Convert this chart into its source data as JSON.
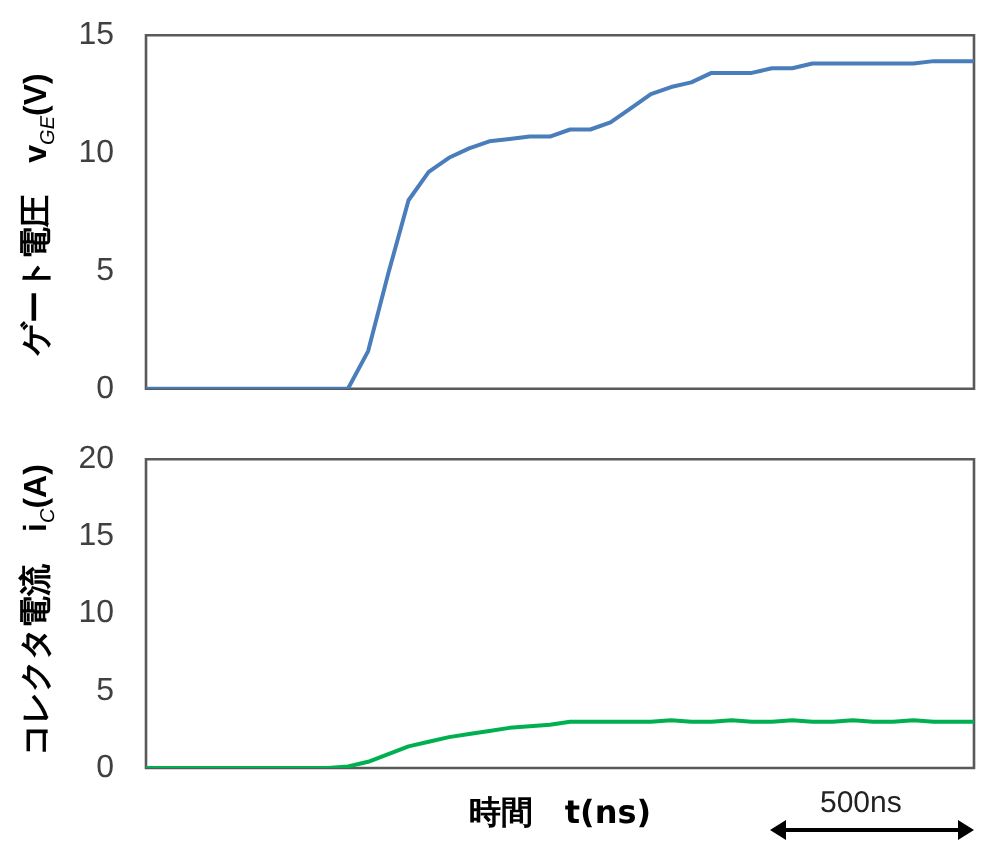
{
  "chart_data": [
    {
      "type": "line",
      "ylabel": "ゲート電圧　v$_{GE}$(V)",
      "categories": [
        null,
        null,
        null,
        null,
        null,
        null,
        null,
        null,
        null,
        null,
        null,
        null,
        null,
        null,
        null,
        null,
        null,
        null,
        null,
        null,
        null,
        null,
        null,
        null,
        null,
        null,
        null,
        null,
        null,
        null,
        null,
        null,
        null,
        null,
        null,
        null,
        null,
        null,
        null,
        null,
        null,
        null
      ],
      "values": [
        0,
        0,
        0,
        0,
        0,
        0,
        0,
        0,
        0,
        0,
        0,
        1.6,
        4.9,
        8.0,
        9.2,
        9.8,
        10.2,
        10.5,
        10.6,
        10.7,
        10.7,
        11.0,
        11.0,
        11.3,
        11.9,
        12.5,
        12.8,
        13.0,
        13.4,
        13.4,
        13.4,
        13.6,
        13.6,
        13.8,
        13.8,
        13.8,
        13.8,
        13.8,
        13.8,
        13.9,
        13.9,
        13.9
      ],
      "color": "#4a7ebb",
      "ylim": [
        0,
        15
      ],
      "yticks": [
        0,
        5,
        10,
        15
      ],
      "tick_labels": "y",
      "marker": "none"
    },
    {
      "type": "line",
      "ylabel": "コレクタ電流　i$_{C}$(A)",
      "xlabel": "時間　t(ns)",
      "categories": [
        null,
        null,
        null,
        null,
        null,
        null,
        null,
        null,
        null,
        null,
        null,
        null,
        null,
        null,
        null,
        null,
        null,
        null,
        null,
        null,
        null,
        null,
        null,
        null,
        null,
        null,
        null,
        null,
        null,
        null,
        null,
        null,
        null,
        null,
        null,
        null,
        null,
        null,
        null,
        null,
        null,
        null
      ],
      "values": [
        0,
        0,
        0,
        0,
        0,
        0,
        0,
        0,
        0,
        0,
        0.1,
        0.4,
        0.9,
        1.4,
        1.7,
        2.0,
        2.2,
        2.4,
        2.6,
        2.7,
        2.8,
        3.0,
        3.0,
        3.0,
        3.0,
        3.0,
        3.1,
        3.0,
        3.0,
        3.1,
        3.0,
        3.0,
        3.1,
        3.0,
        3.0,
        3.1,
        3.0,
        3.0,
        3.1,
        3.0,
        3.0,
        3.0
      ],
      "color": "#00b050",
      "ylim": [
        0,
        20
      ],
      "yticks": [
        0,
        5,
        10,
        15,
        20
      ],
      "tick_labels": "y",
      "marker": "none",
      "annotations": [
        "500ns"
      ]
    }
  ]
}
